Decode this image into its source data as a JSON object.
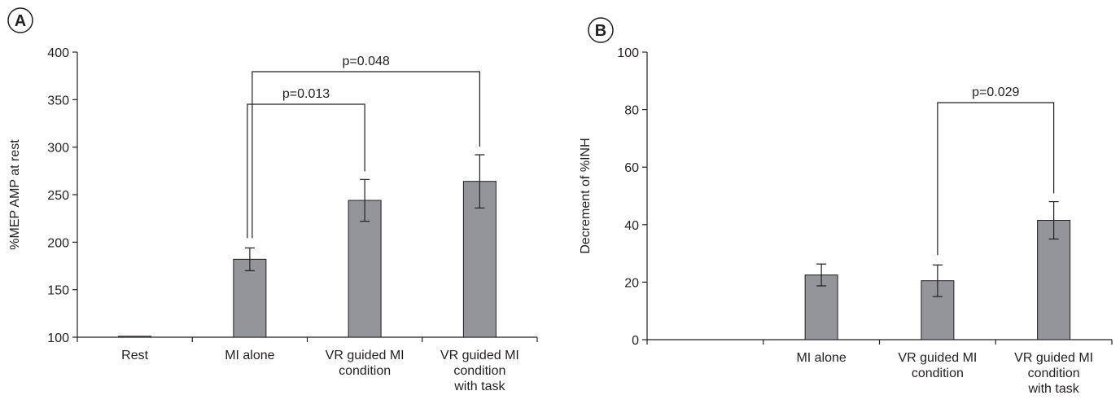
{
  "chart_data": [
    {
      "type": "bar",
      "panel_label": "A",
      "ylabel": "%MEP AMP at rest",
      "xlabel": "",
      "ylim": [
        100,
        400
      ],
      "yticks": [
        100,
        150,
        200,
        250,
        300,
        350,
        400
      ],
      "categories": [
        [
          "Rest"
        ],
        [
          "MI alone"
        ],
        [
          "VR guided MI",
          "condition"
        ],
        [
          "VR guided MI",
          "condition",
          "with task"
        ]
      ],
      "values": [
        101,
        182,
        244,
        264
      ],
      "errors": [
        0,
        12,
        22,
        28
      ],
      "annotations": [
        {
          "text": "p=0.013",
          "from": 1,
          "to": 2,
          "level": 1
        },
        {
          "text": "p=0.048",
          "from": 1,
          "to": 3,
          "level": 2
        }
      ],
      "bar_color": "#939598",
      "grid": false
    },
    {
      "type": "bar",
      "panel_label": "B",
      "ylabel": "Decrement of %INH",
      "xlabel": "",
      "ylim": [
        0,
        100
      ],
      "yticks": [
        0,
        20,
        40,
        60,
        80,
        100
      ],
      "categories": [
        [
          ""
        ],
        [
          "MI alone"
        ],
        [
          "VR guided MI",
          "condition"
        ],
        [
          "VR guided MI",
          "condition",
          "with task"
        ]
      ],
      "values": [
        null,
        22.5,
        20.5,
        41.5
      ],
      "errors": [
        0,
        3.8,
        5.5,
        6.5
      ],
      "annotations": [
        {
          "text": "p=0.029",
          "from": 2,
          "to": 3,
          "level": 1
        }
      ],
      "bar_color": "#939598",
      "grid": false
    }
  ]
}
